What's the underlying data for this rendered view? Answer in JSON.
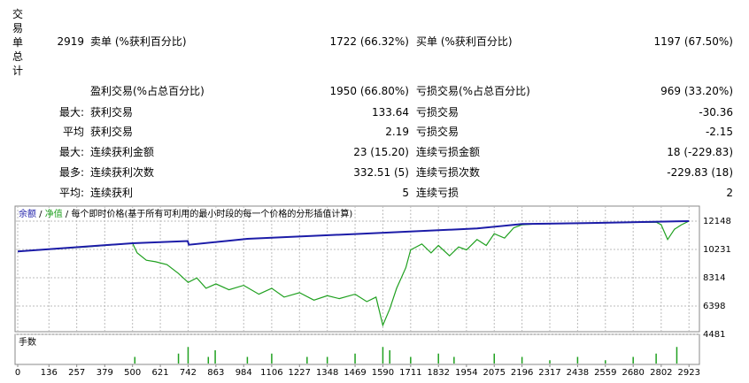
{
  "summary": {
    "side_label": "交易单总计",
    "rows": [
      {
        "key": "2919",
        "label1": "卖单 (%获利百分比)",
        "value1": "1722 (66.32%)",
        "label2": "买单 (%获利百分比)",
        "value2": "1197 (67.50%)"
      },
      {
        "label1": "盈利交易(%占总百分比)",
        "value1": "1950 (66.80%)",
        "label2": "亏损交易(%占总百分比)",
        "value2": "969 (33.20%)"
      },
      {
        "key": "最大:",
        "label1": "获利交易",
        "value1": "133.64",
        "label2": "亏损交易",
        "value2": "-30.36"
      },
      {
        "key": "平均",
        "label1": "获利交易",
        "value1": "2.19",
        "label2": "亏损交易",
        "value2": "-2.15"
      },
      {
        "key": "最大:",
        "label1": "连续获利金额",
        "value1": "23 (15.20)",
        "label2": "连续亏损金额",
        "value2": "18 (-229.83)"
      },
      {
        "key": "最多:",
        "label1": "连续获利次数",
        "value1": "332.51 (5)",
        "label2": "连续亏损次数",
        "value2": "-229.83 (18)"
      },
      {
        "key": "平均:",
        "label1": "连续获利",
        "value1": "5",
        "label2": "连续亏损",
        "value2": "2"
      }
    ]
  },
  "chart_data": {
    "type": "line",
    "note": "每个即时价格(基于所有可利用的最小时段的每一个价格的分形插值计算)",
    "xlim": [
      0,
      2980
    ],
    "ylim": [
      4481,
      12148
    ],
    "xticks": [
      0,
      136,
      257,
      379,
      500,
      621,
      742,
      863,
      984,
      1106,
      1227,
      1348,
      1469,
      1590,
      1711,
      1832,
      1954,
      2075,
      2196,
      2317,
      2438,
      2559,
      2680,
      2802,
      2923
    ],
    "yticks": [
      4481,
      6398,
      8314,
      10231,
      12148
    ],
    "grid": true,
    "series": [
      {
        "name": "余额",
        "color": "#1c1ca8",
        "x": [
          0,
          500,
          740,
          745,
          1000,
          1500,
          2000,
          2196,
          2500,
          2923
        ],
        "values": [
          10100,
          10650,
          10800,
          10550,
          10950,
          11300,
          11650,
          11950,
          12020,
          12148
        ]
      },
      {
        "name": "净值",
        "color": "#1fa01f",
        "x": [
          0,
          300,
          500,
          520,
          560,
          600,
          650,
          700,
          742,
          780,
          820,
          863,
          920,
          984,
          1050,
          1106,
          1160,
          1227,
          1290,
          1348,
          1400,
          1469,
          1520,
          1560,
          1590,
          1620,
          1650,
          1690,
          1711,
          1760,
          1800,
          1832,
          1880,
          1920,
          1954,
          2000,
          2040,
          2075,
          2120,
          2160,
          2196,
          2250,
          2400,
          2600,
          2780,
          2802,
          2830,
          2860,
          2890,
          2923
        ],
        "values": [
          10100,
          10400,
          10650,
          10000,
          9500,
          9400,
          9200,
          8600,
          8000,
          8300,
          7600,
          7900,
          7500,
          7800,
          7200,
          7600,
          7000,
          7300,
          6800,
          7100,
          6900,
          7200,
          6700,
          7000,
          5100,
          6200,
          7600,
          9000,
          10200,
          10600,
          10000,
          10500,
          9800,
          10400,
          10200,
          10900,
          10500,
          11300,
          11000,
          11700,
          11900,
          11950,
          12000,
          12050,
          12080,
          11900,
          10900,
          11600,
          11900,
          12148
        ]
      }
    ],
    "volume": {
      "label": "手数",
      "color": "#1fa01f",
      "ylim": [
        0,
        0.8
      ],
      "x": [
        510,
        700,
        742,
        830,
        860,
        1000,
        1106,
        1260,
        1348,
        1469,
        1590,
        1620,
        1711,
        1832,
        1900,
        2075,
        2196,
        2317,
        2438,
        2559,
        2680,
        2780,
        2870
      ],
      "values": [
        0.2,
        0.3,
        0.5,
        0.2,
        0.4,
        0.2,
        0.3,
        0.2,
        0.2,
        0.3,
        0.5,
        0.4,
        0.2,
        0.3,
        0.2,
        0.3,
        0.2,
        0.1,
        0.2,
        0.1,
        0.2,
        0.3,
        0.5
      ]
    }
  }
}
